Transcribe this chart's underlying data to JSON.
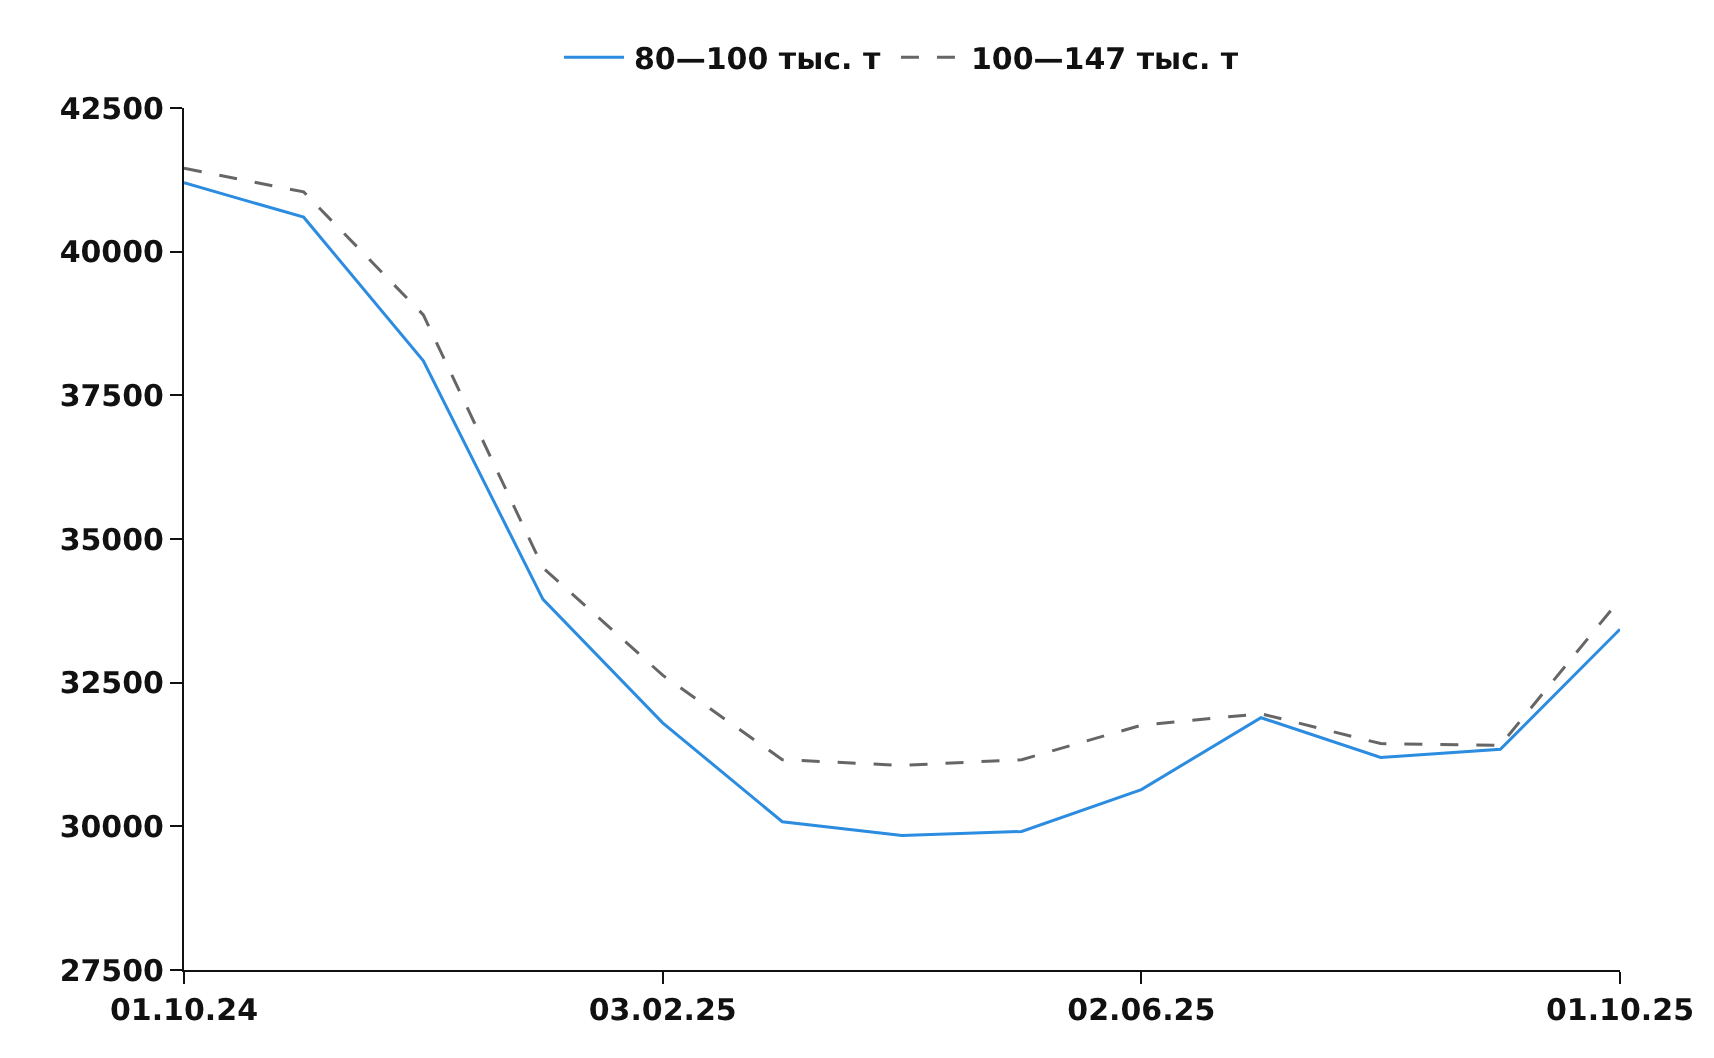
{
  "chart_data": {
    "type": "line",
    "categories": [
      "01.10.24",
      null,
      null,
      null,
      "03.02.25",
      null,
      null,
      null,
      "02.06.25",
      null,
      null,
      null,
      "01.10.25"
    ],
    "series": [
      {
        "name": "80—100 тыс. т",
        "color": "#2b8ce0",
        "line_style": "solid",
        "values": [
          41200,
          40600,
          38100,
          33950,
          31800,
          30080,
          29840,
          29910,
          30640,
          31890,
          31200,
          31340,
          33430
        ]
      },
      {
        "name": "100—147 тыс. т",
        "color": "#666666",
        "line_style": "dashed",
        "values": [
          41450,
          41040,
          38900,
          34500,
          32630,
          31160,
          31060,
          31160,
          31760,
          31960,
          31440,
          31410,
          33950
        ]
      }
    ],
    "ylim": [
      27500,
      42500
    ],
    "yticks": [
      27500,
      30000,
      32500,
      35000,
      37500,
      40000,
      42500
    ],
    "grid": false,
    "legend": "top",
    "marker": "none"
  }
}
